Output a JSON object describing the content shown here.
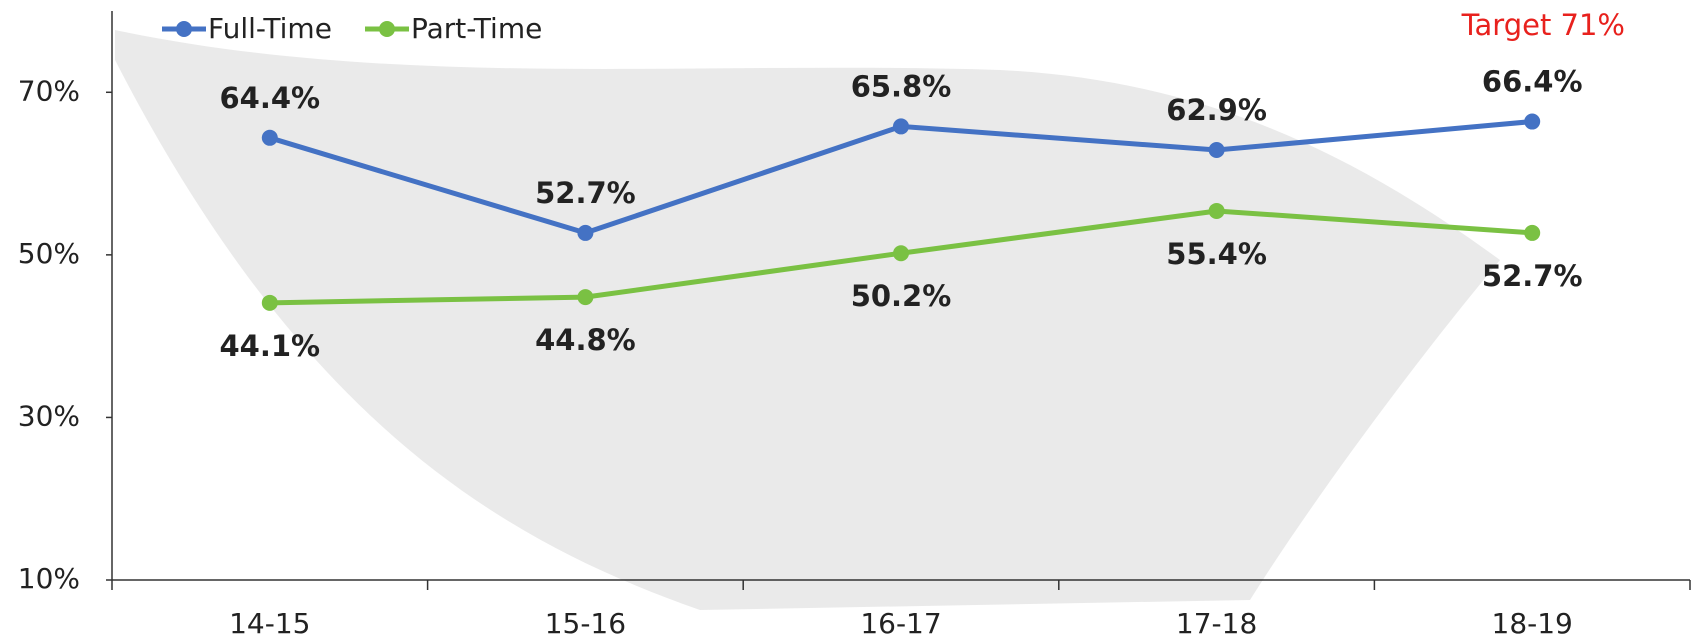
{
  "chart_data": {
    "type": "line",
    "categories": [
      "14-15",
      "15-16",
      "16-17",
      "17-18",
      "18-19"
    ],
    "series": [
      {
        "name": "Full-Time",
        "color": "#4472c4",
        "values": [
          64.4,
          52.7,
          65.8,
          62.9,
          66.4
        ],
        "value_labels": [
          "64.4%",
          "52.7%",
          "65.8%",
          "62.9%",
          "66.4%"
        ]
      },
      {
        "name": "Part-Time",
        "color": "#7ac143",
        "values": [
          44.1,
          44.8,
          50.2,
          55.4,
          52.7
        ],
        "value_labels": [
          "44.1%",
          "44.8%",
          "50.2%",
          "55.4%",
          "52.7%"
        ]
      }
    ],
    "annotation": "Target 71%",
    "annotation_color": "#e8211d",
    "ylim": [
      10,
      80
    ],
    "yticks": [
      {
        "value": 10,
        "label": "10%"
      },
      {
        "value": 30,
        "label": "30%"
      },
      {
        "value": 50,
        "label": "50%"
      },
      {
        "value": 70,
        "label": "70%"
      }
    ],
    "legend": "top-left"
  }
}
